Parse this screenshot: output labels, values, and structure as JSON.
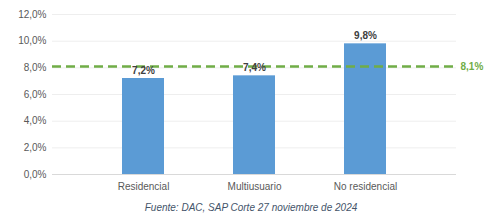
{
  "chart_data": {
    "type": "bar",
    "caption": "Fuente: DAC, SAP Corte 27 noviembre de 2024",
    "categories": [
      "Residencial",
      "Multiusuario",
      "No residencial"
    ],
    "values": [
      7.2,
      7.4,
      9.8
    ],
    "value_labels": [
      "7,2%",
      "7,4%",
      "9,8%"
    ],
    "data_labels": true,
    "color": "#5b9bd5",
    "reference_line": {
      "value": 8.1,
      "label": "8,1%",
      "color": "#70ad47",
      "line_style": "dashed"
    },
    "ylim": [
      0,
      12
    ],
    "yticks": [
      {
        "value": 0,
        "label": "0,0%"
      },
      {
        "value": 2,
        "label": "2,0%"
      },
      {
        "value": 4,
        "label": "4,0%"
      },
      {
        "value": 6,
        "label": "6,0%"
      },
      {
        "value": 8,
        "label": "8,0%"
      },
      {
        "value": 10,
        "label": "10,0%"
      },
      {
        "value": 12,
        "label": "12,0%"
      }
    ],
    "grid": true
  }
}
